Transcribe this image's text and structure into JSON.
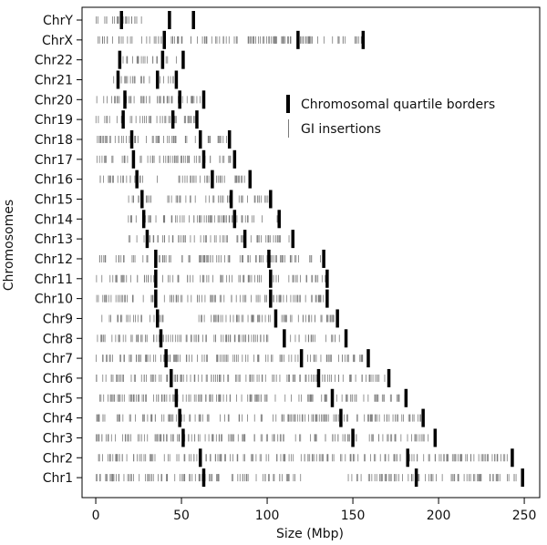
{
  "chart_data": {
    "type": "strip",
    "title": "",
    "xlabel": "Size (Mbp)",
    "ylabel": "Chromosomes",
    "xlim": [
      -8,
      259
    ],
    "x_ticks": [
      0,
      50,
      100,
      150,
      200,
      250
    ],
    "grid": false,
    "legend_position": "upper-right",
    "legend": [
      {
        "marker": "thick-bar",
        "label": "Chromosomal quartile borders"
      },
      {
        "marker": "thin-line",
        "label": "GI insertions"
      }
    ],
    "colors": {
      "insertion": "#7a7a7a",
      "border": "#000000",
      "axis": "#000000"
    },
    "chromosomes": [
      {
        "name": "ChrY",
        "length": 57,
        "quartiles": [
          15,
          43,
          57
        ]
      },
      {
        "name": "ChrX",
        "length": 156,
        "quartiles": [
          40,
          118,
          156
        ]
      },
      {
        "name": "Chr22",
        "length": 51,
        "quartiles": [
          14,
          39,
          51
        ]
      },
      {
        "name": "Chr21",
        "length": 47,
        "quartiles": [
          13,
          36,
          47
        ]
      },
      {
        "name": "Chr20",
        "length": 63,
        "quartiles": [
          17,
          49,
          63
        ]
      },
      {
        "name": "Chr19",
        "length": 59,
        "quartiles": [
          16,
          45,
          59
        ]
      },
      {
        "name": "Chr18",
        "length": 78,
        "quartiles": [
          21,
          61,
          78
        ]
      },
      {
        "name": "Chr17",
        "length": 81,
        "quartiles": [
          22,
          63,
          81
        ]
      },
      {
        "name": "Chr16",
        "length": 90,
        "quartiles": [
          24,
          68,
          90
        ]
      },
      {
        "name": "Chr15",
        "length": 102,
        "quartiles": [
          27,
          79,
          102
        ]
      },
      {
        "name": "Chr14",
        "length": 107,
        "quartiles": [
          28,
          81,
          107
        ]
      },
      {
        "name": "Chr13",
        "length": 115,
        "quartiles": [
          30,
          87,
          115
        ]
      },
      {
        "name": "Chr12",
        "length": 133,
        "quartiles": [
          35,
          101,
          133
        ]
      },
      {
        "name": "Chr11",
        "length": 135,
        "quartiles": [
          35,
          102,
          135
        ]
      },
      {
        "name": "Chr10",
        "length": 135,
        "quartiles": [
          35,
          102,
          135
        ]
      },
      {
        "name": "Chr9",
        "length": 141,
        "quartiles": [
          36,
          105,
          141
        ]
      },
      {
        "name": "Chr8",
        "length": 146,
        "quartiles": [
          38,
          110,
          146
        ]
      },
      {
        "name": "Chr7",
        "length": 159,
        "quartiles": [
          41,
          120,
          159
        ]
      },
      {
        "name": "Chr6",
        "length": 171,
        "quartiles": [
          44,
          130,
          171
        ]
      },
      {
        "name": "Chr5",
        "length": 181,
        "quartiles": [
          47,
          138,
          181
        ]
      },
      {
        "name": "Chr4",
        "length": 191,
        "quartiles": [
          49,
          143,
          191
        ]
      },
      {
        "name": "Chr3",
        "length": 198,
        "quartiles": [
          51,
          150,
          198
        ]
      },
      {
        "name": "Chr2",
        "length": 243,
        "quartiles": [
          61,
          182,
          243
        ]
      },
      {
        "name": "Chr1",
        "length": 249,
        "quartiles": [
          63,
          187,
          249
        ]
      }
    ],
    "gaps_mbp": {
      "Chr1": [
        [
          121,
          143
        ]
      ],
      "Chr9": [
        [
          40,
          60
        ]
      ],
      "Chr16": [
        [
          36,
          47
        ]
      ],
      "Chr15": [
        [
          0,
          19
        ]
      ],
      "Chr14": [
        [
          0,
          19
        ]
      ],
      "Chr13": [
        [
          0,
          19
        ]
      ],
      "Chr22": [
        [
          0,
          14
        ]
      ],
      "Chr21": [
        [
          0,
          10
        ]
      ],
      "ChrY": [
        [
          27,
          57
        ]
      ]
    }
  }
}
